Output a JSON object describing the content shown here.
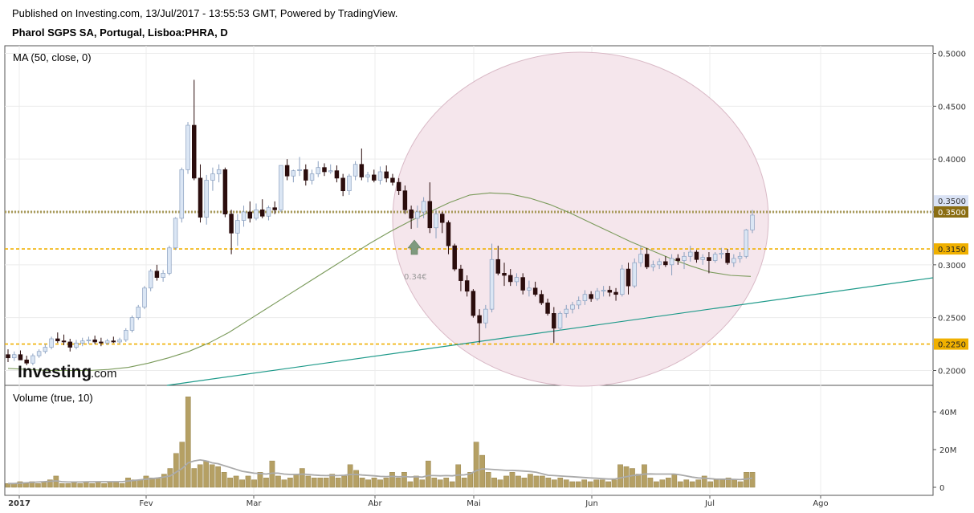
{
  "header": {
    "published_line": "Published on Investing.com, 13/Jul/2017 - 13:55:53 GMT, Powered by TradingView.",
    "instrument": "Pharol SGPS SA, Portugal, Lisboa:PHRA, D"
  },
  "logo": {
    "main": "Investing",
    "sub": ".com"
  },
  "colors": {
    "up_candle": "#dbe6f4",
    "down_candle": "#2b0d0d",
    "ma_line": "#7a9a5a",
    "trend_line": "#1e9a8a",
    "level_line": "#f0b000",
    "resistance_dots": "#a89a5a",
    "circle_fill": "#f5e6ec",
    "volume_bar": "#b5a064",
    "volume_ma": "#aaaaaa"
  },
  "chart_data": [
    {
      "type": "candlestick",
      "title": "MA (50, close, 0)",
      "ylim": [
        0.19,
        0.505
      ],
      "yticks": [
        "0.5000",
        "0.4500",
        "0.4000",
        "0.3500",
        "0.3000",
        "0.2500",
        "0.2000"
      ],
      "xticks": [
        "2017",
        "Fev",
        "Mar",
        "Abr",
        "Mai",
        "Jun",
        "Jul",
        "Ago"
      ],
      "horizontal_levels": [
        {
          "value": 0.35,
          "label": "0.3500",
          "style": "dotted",
          "badge": "0.3500"
        },
        {
          "value": 0.315,
          "label": "0.3150",
          "style": "dashed"
        },
        {
          "value": 0.225,
          "label": "0.2250",
          "style": "dashed"
        }
      ],
      "price_marker": "0.3500",
      "arrow_annotation": "0.34€",
      "ohlc": [
        [
          0.215,
          0.22,
          0.208,
          0.212
        ],
        [
          0.212,
          0.218,
          0.209,
          0.215
        ],
        [
          0.215,
          0.219,
          0.21,
          0.21
        ],
        [
          0.21,
          0.214,
          0.205,
          0.207
        ],
        [
          0.207,
          0.216,
          0.205,
          0.214
        ],
        [
          0.214,
          0.22,
          0.212,
          0.218
        ],
        [
          0.218,
          0.225,
          0.216,
          0.222
        ],
        [
          0.222,
          0.232,
          0.22,
          0.23
        ],
        [
          0.23,
          0.236,
          0.226,
          0.228
        ],
        [
          0.228,
          0.234,
          0.224,
          0.227
        ],
        [
          0.227,
          0.23,
          0.218,
          0.222
        ],
        [
          0.222,
          0.229,
          0.22,
          0.226
        ],
        [
          0.226,
          0.231,
          0.223,
          0.228
        ],
        [
          0.228,
          0.232,
          0.225,
          0.229
        ],
        [
          0.229,
          0.233,
          0.225,
          0.227
        ],
        [
          0.227,
          0.231,
          0.223,
          0.226
        ],
        [
          0.226,
          0.23,
          0.224,
          0.228
        ],
        [
          0.228,
          0.232,
          0.226,
          0.227
        ],
        [
          0.227,
          0.231,
          0.225,
          0.229
        ],
        [
          0.229,
          0.24,
          0.227,
          0.238
        ],
        [
          0.238,
          0.252,
          0.236,
          0.25
        ],
        [
          0.25,
          0.262,
          0.248,
          0.26
        ],
        [
          0.26,
          0.28,
          0.258,
          0.278
        ],
        [
          0.278,
          0.296,
          0.275,
          0.294
        ],
        [
          0.294,
          0.3,
          0.285,
          0.288
        ],
        [
          0.288,
          0.295,
          0.284,
          0.292
        ],
        [
          0.292,
          0.318,
          0.29,
          0.316
        ],
        [
          0.316,
          0.345,
          0.314,
          0.344
        ],
        [
          0.344,
          0.392,
          0.34,
          0.39
        ],
        [
          0.39,
          0.435,
          0.386,
          0.432
        ],
        [
          0.432,
          0.475,
          0.38,
          0.382
        ],
        [
          0.382,
          0.395,
          0.34,
          0.345
        ],
        [
          0.345,
          0.385,
          0.338,
          0.38
        ],
        [
          0.38,
          0.392,
          0.37,
          0.386
        ],
        [
          0.386,
          0.395,
          0.378,
          0.39
        ],
        [
          0.39,
          0.392,
          0.345,
          0.348
        ],
        [
          0.348,
          0.352,
          0.31,
          0.33
        ],
        [
          0.33,
          0.348,
          0.318,
          0.342
        ],
        [
          0.342,
          0.356,
          0.336,
          0.35
        ],
        [
          0.35,
          0.36,
          0.34,
          0.344
        ],
        [
          0.344,
          0.358,
          0.342,
          0.352
        ],
        [
          0.352,
          0.362,
          0.344,
          0.346
        ],
        [
          0.346,
          0.356,
          0.342,
          0.354
        ],
        [
          0.354,
          0.36,
          0.348,
          0.352
        ],
        [
          0.352,
          0.394,
          0.35,
          0.394
        ],
        [
          0.394,
          0.4,
          0.38,
          0.384
        ],
        [
          0.384,
          0.39,
          0.378,
          0.389
        ],
        [
          0.389,
          0.402,
          0.384,
          0.39
        ],
        [
          0.39,
          0.395,
          0.375,
          0.38
        ],
        [
          0.38,
          0.39,
          0.376,
          0.386
        ],
        [
          0.386,
          0.398,
          0.383,
          0.392
        ],
        [
          0.392,
          0.396,
          0.384,
          0.388
        ],
        [
          0.388,
          0.395,
          0.386,
          0.389
        ],
        [
          0.389,
          0.394,
          0.378,
          0.382
        ],
        [
          0.382,
          0.386,
          0.365,
          0.37
        ],
        [
          0.37,
          0.386,
          0.366,
          0.384
        ],
        [
          0.384,
          0.398,
          0.38,
          0.395
        ],
        [
          0.395,
          0.41,
          0.38,
          0.383
        ],
        [
          0.383,
          0.388,
          0.378,
          0.385
        ],
        [
          0.385,
          0.39,
          0.378,
          0.38
        ],
        [
          0.38,
          0.393,
          0.376,
          0.388
        ],
        [
          0.388,
          0.394,
          0.378,
          0.382
        ],
        [
          0.382,
          0.386,
          0.375,
          0.378
        ],
        [
          0.378,
          0.382,
          0.366,
          0.37
        ],
        [
          0.37,
          0.375,
          0.348,
          0.352
        ],
        [
          0.352,
          0.356,
          0.334,
          0.344
        ],
        [
          0.344,
          0.356,
          0.335,
          0.35
        ],
        [
          0.35,
          0.364,
          0.344,
          0.36
        ],
        [
          0.36,
          0.378,
          0.33,
          0.335
        ],
        [
          0.335,
          0.352,
          0.325,
          0.348
        ],
        [
          0.348,
          0.35,
          0.33,
          0.34
        ],
        [
          0.34,
          0.342,
          0.31,
          0.318
        ],
        [
          0.318,
          0.32,
          0.294,
          0.296
        ],
        [
          0.296,
          0.3,
          0.275,
          0.285
        ],
        [
          0.285,
          0.29,
          0.27,
          0.275
        ],
        [
          0.275,
          0.277,
          0.25,
          0.252
        ],
        [
          0.252,
          0.258,
          0.226,
          0.245
        ],
        [
          0.245,
          0.262,
          0.24,
          0.258
        ],
        [
          0.258,
          0.32,
          0.255,
          0.305
        ],
        [
          0.305,
          0.318,
          0.29,
          0.292
        ],
        [
          0.292,
          0.302,
          0.28,
          0.29
        ],
        [
          0.29,
          0.296,
          0.28,
          0.284
        ],
        [
          0.284,
          0.292,
          0.28,
          0.288
        ],
        [
          0.288,
          0.292,
          0.272,
          0.276
        ],
        [
          0.276,
          0.285,
          0.27,
          0.278
        ],
        [
          0.278,
          0.284,
          0.27,
          0.272
        ],
        [
          0.272,
          0.276,
          0.262,
          0.264
        ],
        [
          0.264,
          0.268,
          0.252,
          0.254
        ],
        [
          0.254,
          0.26,
          0.226,
          0.24
        ],
        [
          0.24,
          0.256,
          0.238,
          0.254
        ],
        [
          0.254,
          0.262,
          0.25,
          0.258
        ],
        [
          0.258,
          0.265,
          0.254,
          0.262
        ],
        [
          0.262,
          0.27,
          0.258,
          0.266
        ],
        [
          0.266,
          0.276,
          0.262,
          0.272
        ],
        [
          0.272,
          0.275,
          0.265,
          0.268
        ],
        [
          0.268,
          0.278,
          0.266,
          0.275
        ],
        [
          0.275,
          0.28,
          0.27,
          0.276
        ],
        [
          0.276,
          0.28,
          0.27,
          0.274
        ],
        [
          0.274,
          0.278,
          0.266,
          0.272
        ],
        [
          0.272,
          0.3,
          0.27,
          0.296
        ],
        [
          0.296,
          0.302,
          0.272,
          0.28
        ],
        [
          0.28,
          0.306,
          0.278,
          0.302
        ],
        [
          0.302,
          0.318,
          0.298,
          0.31
        ],
        [
          0.31,
          0.316,
          0.296,
          0.298
        ],
        [
          0.298,
          0.304,
          0.294,
          0.3
        ],
        [
          0.3,
          0.306,
          0.296,
          0.303
        ],
        [
          0.303,
          0.308,
          0.298,
          0.3
        ],
        [
          0.3,
          0.31,
          0.29,
          0.306
        ],
        [
          0.306,
          0.31,
          0.3,
          0.304
        ],
        [
          0.304,
          0.312,
          0.296,
          0.308
        ],
        [
          0.308,
          0.318,
          0.303,
          0.312
        ],
        [
          0.312,
          0.314,
          0.302,
          0.305
        ],
        [
          0.305,
          0.31,
          0.3,
          0.307
        ],
        [
          0.307,
          0.312,
          0.292,
          0.304
        ],
        [
          0.304,
          0.312,
          0.302,
          0.31
        ],
        [
          0.31,
          0.316,
          0.306,
          0.311
        ],
        [
          0.311,
          0.315,
          0.3,
          0.302
        ],
        [
          0.302,
          0.31,
          0.298,
          0.306
        ],
        [
          0.306,
          0.312,
          0.302,
          0.308
        ],
        [
          0.308,
          0.334,
          0.306,
          0.333
        ],
        [
          0.333,
          0.352,
          0.33,
          0.347
        ]
      ],
      "ma50": [
        0.202,
        0.201,
        0.2,
        0.2,
        0.2,
        0.201,
        0.203,
        0.207,
        0.212,
        0.218,
        0.226,
        0.236,
        0.248,
        0.26,
        0.272,
        0.284,
        0.296,
        0.308,
        0.32,
        0.331,
        0.341,
        0.35,
        0.359,
        0.366,
        0.368,
        0.367,
        0.363,
        0.357,
        0.349,
        0.34,
        0.331,
        0.322,
        0.314,
        0.306,
        0.299,
        0.293,
        0.29,
        0.289
      ],
      "volume": {
        "title": "Volume (true, 10)",
        "ylim": [
          0,
          52
        ],
        "yticks": [
          "40M",
          "20M",
          "0"
        ],
        "values": [
          2,
          2,
          3,
          2,
          3,
          2,
          3,
          4,
          6,
          2,
          2,
          3,
          2,
          3,
          2,
          3,
          2,
          3,
          3,
          2,
          5,
          4,
          4,
          6,
          5,
          5,
          7,
          10,
          18,
          24,
          48,
          10,
          12,
          14,
          12,
          11,
          8,
          5,
          6,
          4,
          6,
          4,
          8,
          5,
          14,
          6,
          4,
          5,
          7,
          10,
          6,
          5,
          5,
          5,
          7,
          5,
          6,
          12,
          9,
          5,
          4,
          5,
          4,
          5,
          8,
          5,
          8,
          3,
          6,
          4,
          14,
          5,
          4,
          5,
          3,
          12,
          5,
          8,
          24,
          17,
          8,
          5,
          4,
          6,
          8,
          6,
          5,
          7,
          6,
          6,
          5,
          4,
          5,
          4,
          3,
          3,
          4,
          3,
          4,
          4,
          3,
          4,
          12,
          11,
          10,
          7,
          12,
          5,
          3,
          4,
          5,
          7,
          3,
          4,
          3,
          4,
          6,
          3,
          4,
          4,
          5,
          4,
          3,
          8,
          8
        ],
        "ma10": [
          2,
          2,
          2.2,
          2.4,
          2.6,
          2.8,
          3,
          3.2,
          3.4,
          3,
          2.8,
          2.8,
          2.8,
          2.9,
          2.9,
          3,
          3,
          3,
          3,
          3,
          3.3,
          3.6,
          4,
          4.3,
          4.6,
          5,
          5.5,
          6,
          8,
          10,
          13,
          14,
          14.5,
          14,
          13,
          12.5,
          11.5,
          10.5,
          9.5,
          8.5,
          8,
          7.5,
          7.3,
          7,
          7.5,
          7.5,
          7,
          6.8,
          6.8,
          7,
          6.8,
          6.5,
          6.3,
          6.2,
          6.3,
          6.2,
          6.4,
          6.8,
          6.8,
          6.5,
          6.3,
          6.1,
          5.8,
          5.7,
          5.8,
          5.6,
          5.7,
          5.5,
          5.6,
          5.4,
          6.2,
          6.2,
          6.1,
          6.2,
          6.1,
          6.5,
          6.6,
          7.2,
          8.8,
          9.8,
          9.6,
          9.4,
          9.2,
          9.0,
          9.0,
          8.8,
          8.6,
          8.4,
          8.0,
          7.2,
          6.4,
          6.2,
          6.0,
          5.8,
          5.6,
          5.4,
          5.2,
          5.0,
          4.8,
          4.6,
          4.4,
          4.4,
          5.0,
          5.6,
          6.2,
          6.5,
          7.0,
          7.1,
          7.0,
          7.0,
          7.0,
          7.0,
          6.6,
          6.0,
          5.4,
          5.0,
          4.8,
          4.6,
          4.3,
          4.3,
          4.3,
          4.2,
          4.1,
          4.4,
          4.9
        ]
      }
    }
  ]
}
